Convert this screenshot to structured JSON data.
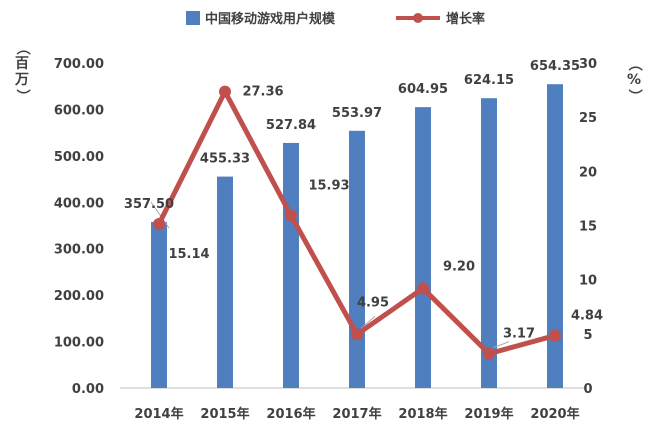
{
  "chart_data": {
    "type": "bar",
    "categories": [
      "2014年",
      "2015年",
      "2016年",
      "2017年",
      "2018年",
      "2019年",
      "2020年"
    ],
    "series": [
      {
        "name": "中国移动游戏用户规模",
        "type": "bar",
        "axis": "left",
        "values": [
          357.5,
          455.33,
          527.84,
          553.97,
          604.95,
          624.15,
          654.35
        ],
        "labels": [
          "357.50",
          "455.33",
          "527.84",
          "553.97",
          "604.95",
          "624.15",
          "654.35"
        ]
      },
      {
        "name": "增长率",
        "type": "line",
        "axis": "right",
        "values": [
          15.14,
          27.36,
          15.93,
          4.95,
          9.2,
          3.17,
          4.84
        ],
        "labels": [
          "15.14",
          "27.36",
          "15.93",
          "4.95",
          "9.20",
          "3.17",
          "4.84"
        ]
      }
    ],
    "y_left": {
      "label": "（百万）",
      "lim": [
        0,
        700
      ],
      "ticks": [
        "0.00",
        "100.00",
        "200.00",
        "300.00",
        "400.00",
        "500.00",
        "600.00",
        "700.00"
      ]
    },
    "y_right": {
      "label": "（%）",
      "lim": [
        0,
        30
      ],
      "ticks": [
        "0",
        "5",
        "10",
        "15",
        "20",
        "25",
        "30"
      ]
    },
    "legend": "top",
    "grid": false,
    "colors": {
      "bar": "#4f7fbf",
      "line": "#c0504d"
    }
  }
}
